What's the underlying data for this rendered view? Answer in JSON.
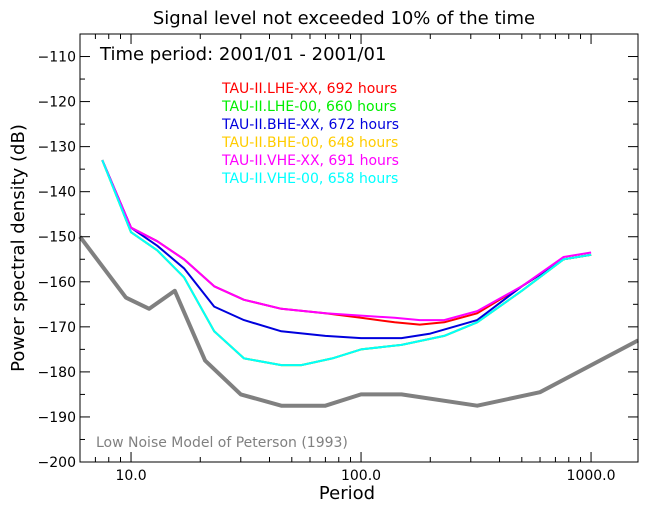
{
  "chart_data": {
    "type": "line",
    "title": "Signal level not exceeded 10% of the time",
    "subtitle": "Time period: 2001/01 - 2001/01",
    "xlabel": "Period",
    "ylabel": "Power spectral density (dB)",
    "xscale": "log",
    "xlim": [
      6.0,
      1600
    ],
    "ylim": [
      -200,
      -105
    ],
    "x_ticks": [
      {
        "value": 10,
        "label": "10.0"
      },
      {
        "value": 100,
        "label": "100.0"
      },
      {
        "value": 1000,
        "label": "1000.0"
      }
    ],
    "y_ticks": [
      {
        "value": -110,
        "label": "-110"
      },
      {
        "value": -120,
        "label": "-120"
      },
      {
        "value": -130,
        "label": "-130"
      },
      {
        "value": -140,
        "label": "-140"
      },
      {
        "value": -150,
        "label": "-150"
      },
      {
        "value": -160,
        "label": "-160"
      },
      {
        "value": -170,
        "label": "-170"
      },
      {
        "value": -180,
        "label": "-180"
      },
      {
        "value": -190,
        "label": "-190"
      },
      {
        "value": -200,
        "label": "-200"
      }
    ],
    "grid": false,
    "legend_position": "top-center",
    "series": [
      {
        "name": "TAU-II.LHE-XX, 692 hours",
        "color": "#ff0000",
        "x": [
          7.5,
          10,
          13,
          17,
          23,
          31,
          45,
          70,
          100,
          140,
          180,
          230,
          320,
          500,
          760,
          1000
        ],
        "y": [
          -133,
          -148,
          -151,
          -155,
          -161,
          -164,
          -166,
          -167,
          -168,
          -169,
          -169.5,
          -169,
          -167,
          -161,
          -155,
          -154
        ]
      },
      {
        "name": "TAU-II.LHE-00, 660 hours",
        "color": "#00ee00",
        "x": [
          7.5,
          10,
          13,
          17,
          23,
          31,
          45,
          55,
          75,
          100,
          150,
          230,
          320,
          500,
          760,
          1000
        ],
        "y": [
          -133,
          -149,
          -153,
          -159,
          -171,
          -177,
          -178.5,
          -178.5,
          -177,
          -175,
          -174,
          -172,
          -169,
          -162,
          -155,
          -154
        ]
      },
      {
        "name": "TAU-II.BHE-XX, 672 hours",
        "color": "#0000dd",
        "x": [
          7.5,
          10,
          13,
          17,
          23,
          31,
          45,
          70,
          100,
          150,
          200,
          320,
          500,
          760,
          1000
        ],
        "y": [
          -133,
          -148,
          -152,
          -157,
          -165.5,
          -168.5,
          -171,
          -172,
          -172.5,
          -172.5,
          -171.5,
          -168.5,
          -161,
          -155,
          -154
        ]
      },
      {
        "name": "TAU-II.BHE-00, 648 hours",
        "color": "#ffcc00",
        "x": [
          7.5,
          10,
          13,
          17,
          23,
          31,
          45,
          55,
          75,
          100,
          150,
          230,
          320,
          500,
          760,
          1000
        ],
        "y": [
          -133,
          -149,
          -153,
          -159,
          -171,
          -177,
          -178.5,
          -178.5,
          -177,
          -175,
          -174,
          -172,
          -169,
          -162,
          -155,
          -154
        ]
      },
      {
        "name": "TAU-II.VHE-XX, 691 hours",
        "color": "#ff00ff",
        "x": [
          7.5,
          10,
          13,
          17,
          23,
          31,
          45,
          70,
          100,
          140,
          180,
          230,
          320,
          500,
          760,
          1000
        ],
        "y": [
          -133,
          -148,
          -151,
          -155,
          -161,
          -164,
          -166,
          -167,
          -167.5,
          -168,
          -168.5,
          -168.5,
          -166.5,
          -161,
          -154.5,
          -153.5
        ]
      },
      {
        "name": "TAU-II.VHE-00, 658 hours",
        "color": "#00ffff",
        "x": [
          7.5,
          10,
          13,
          17,
          23,
          31,
          45,
          55,
          75,
          100,
          150,
          230,
          320,
          500,
          760,
          1000
        ],
        "y": [
          -133,
          -149,
          -153,
          -159,
          -171,
          -177,
          -178.5,
          -178.5,
          -177,
          -175,
          -174,
          -172,
          -169,
          -162,
          -155,
          -154
        ]
      }
    ],
    "reference_model": {
      "label": "Low Noise Model of Peterson (1993)",
      "color": "#808080",
      "x": [
        6.0,
        9.5,
        12,
        15.5,
        21,
        30,
        45,
        70,
        100,
        150,
        320,
        600,
        1600
      ],
      "y": [
        -150,
        -163.5,
        -166,
        -162,
        -177.5,
        -185,
        -187.5,
        -187.5,
        -185,
        -185,
        -187.5,
        -184.5,
        -173
      ]
    }
  }
}
